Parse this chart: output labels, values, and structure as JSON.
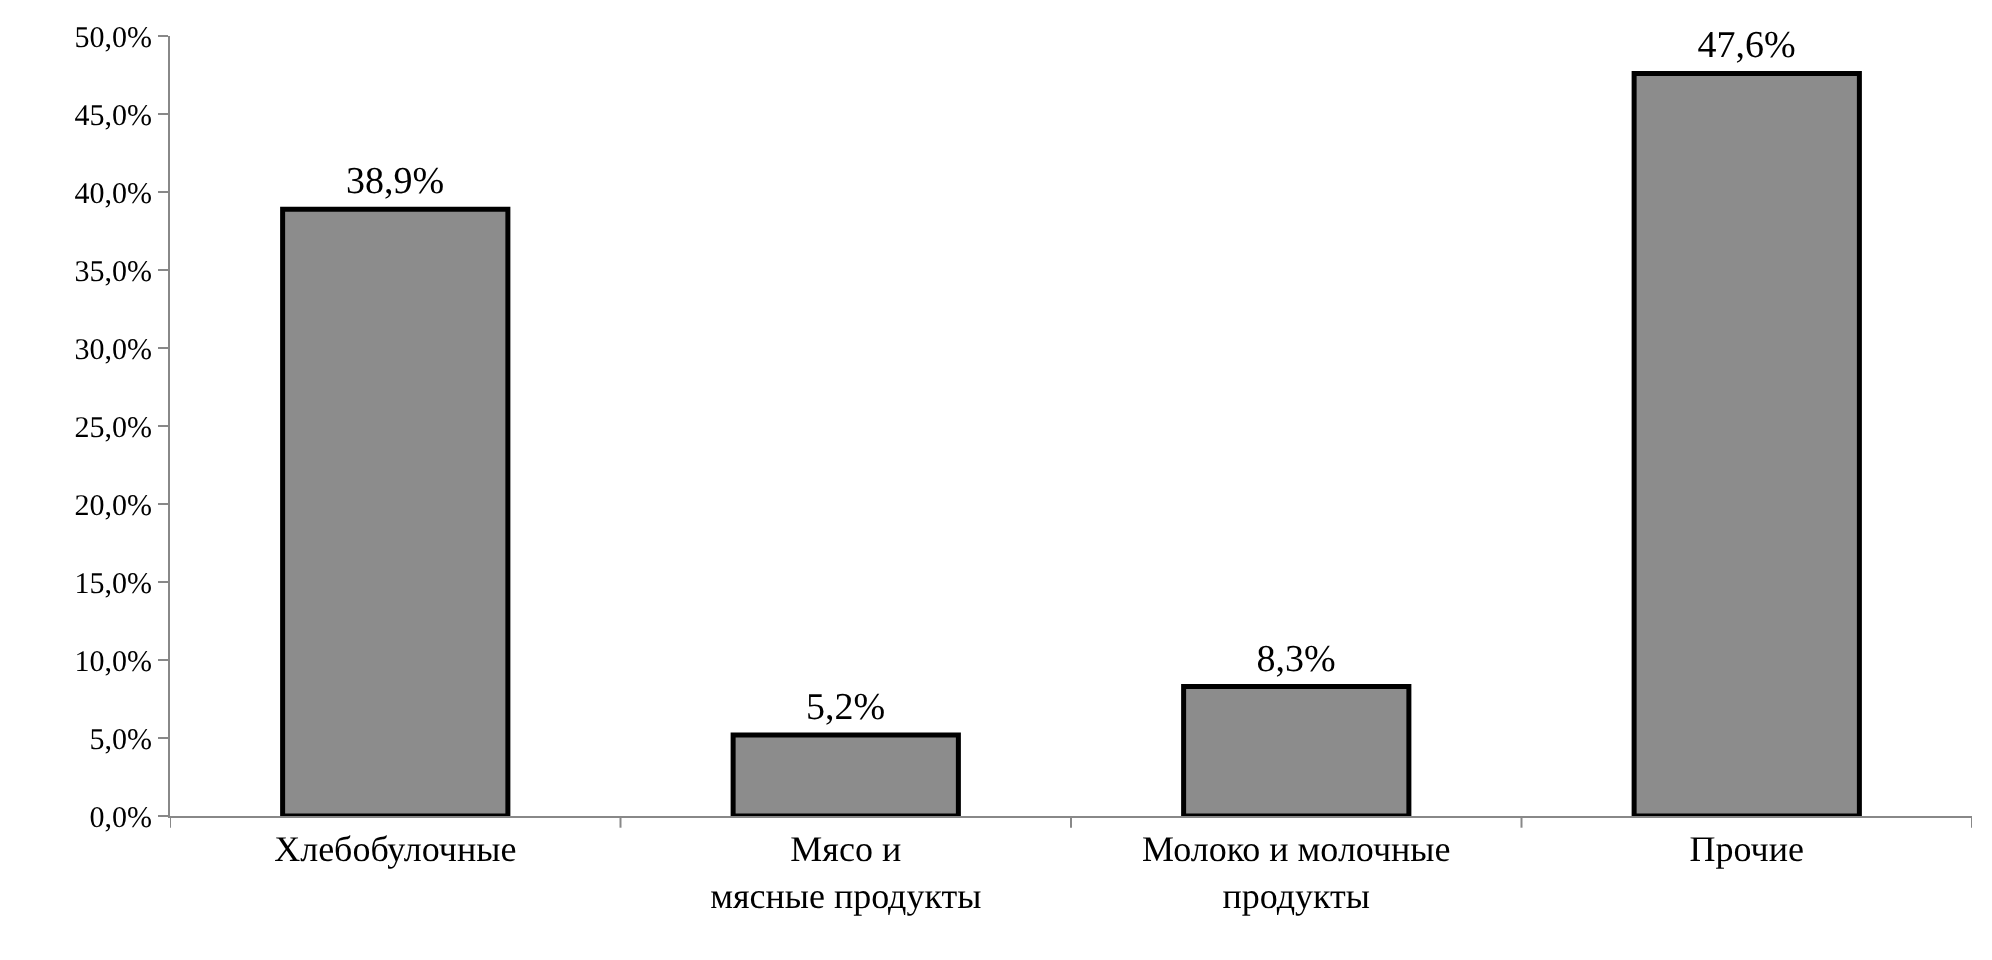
{
  "chart_data": {
    "type": "bar",
    "categories": [
      "Хлебобулочные",
      "Мясо и\nмясные продукты",
      "Молоко и молочные\nпродукты",
      "Прочие"
    ],
    "values": [
      38.9,
      5.2,
      8.3,
      47.6
    ],
    "value_labels": [
      "38,9%",
      "5,2%",
      "8,3%",
      "47,6%"
    ],
    "color": "#8c8c8c",
    "ylim": [
      0,
      50
    ],
    "yticks": [
      {
        "value": 0,
        "label": "0,0%"
      },
      {
        "value": 5,
        "label": "5,0%"
      },
      {
        "value": 10,
        "label": "10,0%"
      },
      {
        "value": 15,
        "label": "15,0%"
      },
      {
        "value": 20,
        "label": "20,0%"
      },
      {
        "value": 25,
        "label": "25,0%"
      },
      {
        "value": 30,
        "label": "30,0%"
      },
      {
        "value": 35,
        "label": "35,0%"
      },
      {
        "value": 40,
        "label": "40,0%"
      },
      {
        "value": 45,
        "label": "45,0%"
      },
      {
        "value": 50,
        "label": "50,0%"
      }
    ],
    "legend": false
  }
}
